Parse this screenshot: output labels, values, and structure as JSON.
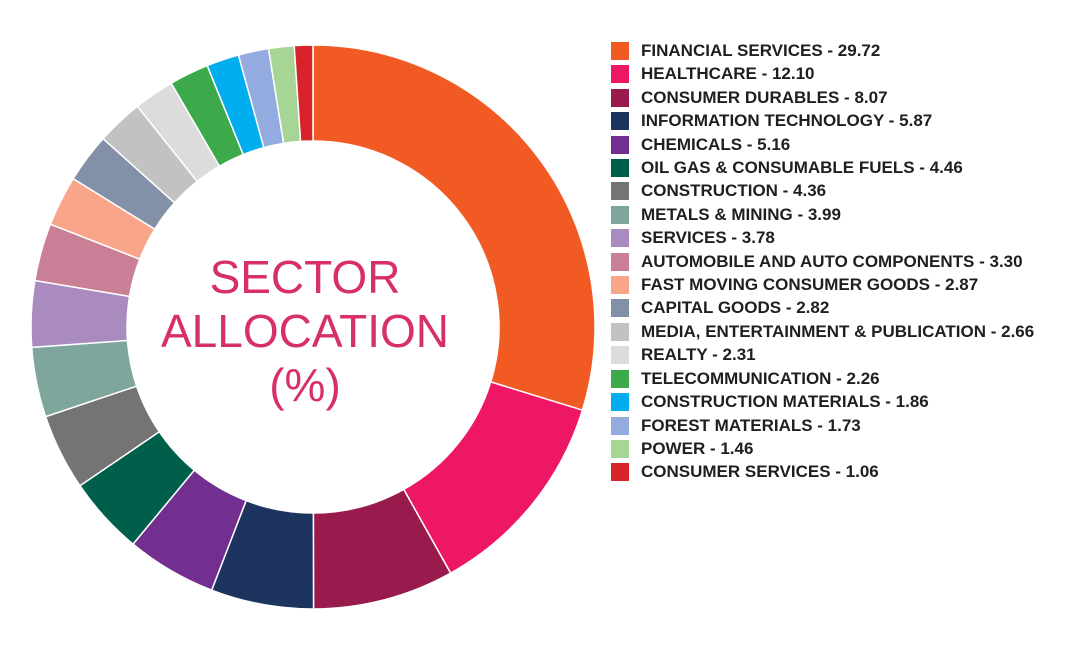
{
  "chart_data": {
    "type": "pie",
    "title_lines": [
      "SECTOR",
      "ALLOCATION",
      "(%)"
    ],
    "slices": [
      {
        "label": "FINANCIAL SERVICES - 29.72",
        "value": 29.72,
        "color": "#f15a22"
      },
      {
        "label": "HEALTHCARE - 12.10",
        "value": 12.1,
        "color": "#ed1766"
      },
      {
        "label": "CONSUMER DURABLES - 8.07",
        "value": 8.07,
        "color": "#991a4c"
      },
      {
        "label": "INFORMATION TECHNOLOGY - 5.87",
        "value": 5.87,
        "color": "#1d355e"
      },
      {
        "label": "CHEMICALS - 5.16",
        "value": 5.16,
        "color": "#722f90"
      },
      {
        "label": "OIL GAS & CONSUMABLE FUELS - 4.46",
        "value": 4.46,
        "color": "#005f4b"
      },
      {
        "label": "CONSTRUCTION - 4.36",
        "value": 4.36,
        "color": "#747474"
      },
      {
        "label": "METALS & MINING - 3.99",
        "value": 3.99,
        "color": "#7ea69c"
      },
      {
        "label": "SERVICES - 3.78",
        "value": 3.78,
        "color": "#a98bc0"
      },
      {
        "label": "AUTOMOBILE AND AUTO COMPONENTS - 3.30",
        "value": 3.3,
        "color": "#c97f96"
      },
      {
        "label": "FAST MOVING CONSUMER GOODS - 2.87",
        "value": 2.87,
        "color": "#f9a58a"
      },
      {
        "label": "CAPITAL GOODS - 2.82",
        "value": 2.82,
        "color": "#8290a8"
      },
      {
        "label": "MEDIA, ENTERTAINMENT & PUBLICATION - 2.66",
        "value": 2.66,
        "color": "#c2c2c2"
      },
      {
        "label": "REALTY - 2.31",
        "value": 2.31,
        "color": "#dcdcdc"
      },
      {
        "label": "TELECOMMUNICATION - 2.26",
        "value": 2.26,
        "color": "#3caa4a"
      },
      {
        "label": "CONSTRUCTION MATERIALS - 1.86",
        "value": 1.86,
        "color": "#00adef"
      },
      {
        "label": "FOREST MATERIALS - 1.73",
        "value": 1.73,
        "color": "#93abdf"
      },
      {
        "label": "POWER - 1.46",
        "value": 1.46,
        "color": "#a7d595"
      },
      {
        "label": "CONSUMER SERVICES - 1.06",
        "value": 1.06,
        "color": "#d8232a"
      }
    ],
    "legend_position": "right"
  }
}
